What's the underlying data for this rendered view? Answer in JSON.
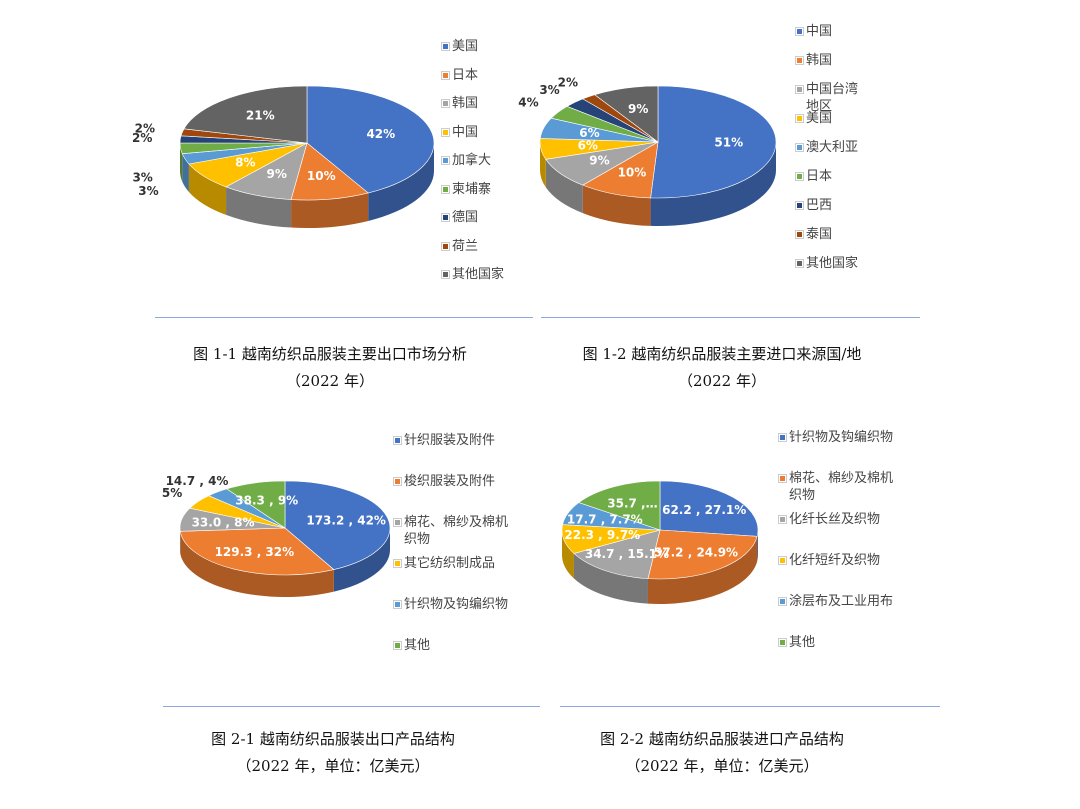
{
  "chart_data": [
    {
      "type": "pie",
      "title": "图 1-1 越南纺织品服装主要出口市场分析",
      "subtitle": "（2022 年）",
      "categories": [
        "美国",
        "日本",
        "韩国",
        "中国",
        "加拿大",
        "柬埔寨",
        "德国",
        "荷兰",
        "其他国家"
      ],
      "values": [
        42,
        10,
        9,
        8,
        3,
        3,
        2,
        2,
        21
      ],
      "value_labels": [
        "42%",
        "10%",
        "9%",
        "8%",
        "3%",
        "3%",
        "2%",
        "2%",
        "21%"
      ],
      "colors": [
        "#4472c4",
        "#ed7d31",
        "#a5a5a5",
        "#ffc000",
        "#5b9bd5",
        "#70ad47",
        "#264478",
        "#9e480e",
        "#636363"
      ]
    },
    {
      "type": "pie",
      "title": "图 1-2 越南纺织品服装主要进口来源国/地",
      "subtitle": "（2022 年）",
      "categories": [
        "中国",
        "韩国",
        "中国台湾地区",
        "美国",
        "澳大利亚",
        "日本",
        "巴西",
        "泰国",
        "其他国家"
      ],
      "values": [
        51,
        10,
        9,
        6,
        6,
        4,
        3,
        2,
        9
      ],
      "value_labels": [
        "51%",
        "10%",
        "9%",
        "6%",
        "6%",
        "4%",
        "3%",
        "2%",
        "9%"
      ],
      "colors": [
        "#4472c4",
        "#ed7d31",
        "#a5a5a5",
        "#ffc000",
        "#5b9bd5",
        "#70ad47",
        "#264478",
        "#9e480e",
        "#636363"
      ]
    },
    {
      "type": "pie",
      "title": "图 2-1 越南纺织品服装出口产品结构",
      "subtitle": "（2022 年，单位：亿美元）",
      "categories": [
        "针织服装及附件",
        "梭织服装及附件",
        "棉花、棉纱及棉机织物",
        "其它纺织制成品",
        "针织物及钩编织物",
        "其他"
      ],
      "values": [
        173.2,
        129.3,
        33.0,
        21,
        14.7,
        38.3
      ],
      "value_labels": [
        "173.2 , 42%",
        "129.3 , 32%",
        "33.0 , 8%",
        "5%",
        "14.7 , 4%",
        "38.3 , 9%"
      ],
      "colors": [
        "#4472c4",
        "#ed7d31",
        "#a5a5a5",
        "#ffc000",
        "#5b9bd5",
        "#70ad47"
      ]
    },
    {
      "type": "pie",
      "title": "图 2-2 越南纺织品服装进口产品结构",
      "subtitle": "（2022 年，单位：亿美元）",
      "categories": [
        "针织物及钩编织物",
        "棉花、棉纱及棉机织物",
        "化纤长丝及织物",
        "化纤短纤及织物",
        "涂层布及工业用布",
        "其他"
      ],
      "values": [
        62.2,
        57.2,
        34.7,
        22.3,
        17.7,
        35.7
      ],
      "value_labels": [
        "62.2 , 27.1%",
        "57.2 , 24.9%",
        "34.7 , 15.1%",
        "22.3 , 9.7%",
        "17.7 , 7.7%",
        "35.7 ,…"
      ],
      "colors": [
        "#4472c4",
        "#ed7d31",
        "#a5a5a5",
        "#ffc000",
        "#5b9bd5",
        "#70ad47"
      ]
    }
  ]
}
